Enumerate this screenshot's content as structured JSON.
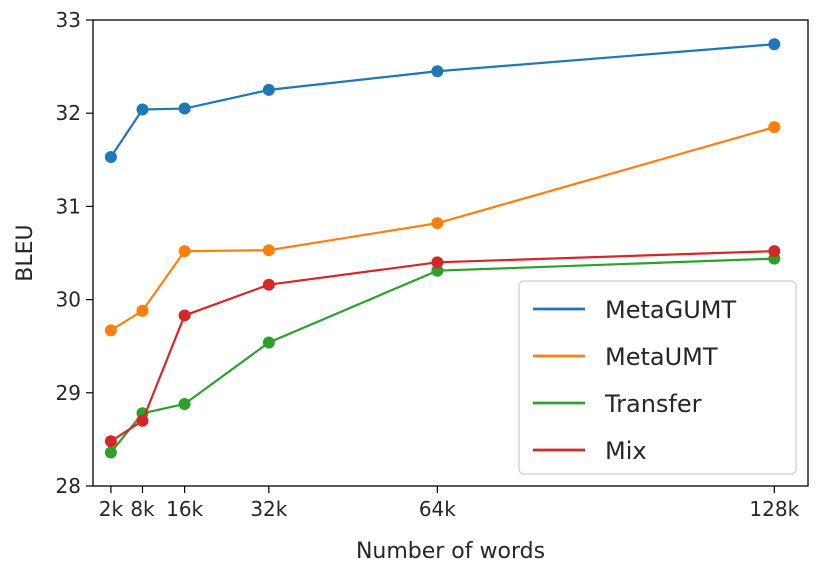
{
  "chart_data": {
    "type": "line",
    "title": "",
    "xlabel": "Number of words",
    "ylabel": "BLEU",
    "x": [
      2,
      8,
      16,
      32,
      64,
      128
    ],
    "x_tick_values": [
      2,
      8,
      16,
      32,
      64,
      128
    ],
    "x_tick_labels": [
      "2k",
      "8k",
      "16k",
      "32k",
      "64k",
      "128k"
    ],
    "y_ticks": [
      28,
      29,
      30,
      31,
      32,
      33
    ],
    "xlim": [
      -1.4,
      134.4
    ],
    "ylim": [
      28,
      33
    ],
    "grid": false,
    "legend_position": "lower-right",
    "series": [
      {
        "name": "MetaGUMT",
        "color": "#1f77b4",
        "values": [
          31.53,
          32.04,
          32.05,
          32.25,
          32.45,
          32.74
        ]
      },
      {
        "name": "MetaUMT",
        "color": "#ff7f0e",
        "values": [
          29.67,
          29.88,
          30.52,
          30.53,
          30.82,
          31.85
        ]
      },
      {
        "name": "Transfer",
        "color": "#2ca02c",
        "values": [
          28.36,
          28.78,
          28.88,
          29.54,
          30.31,
          30.44
        ]
      },
      {
        "name": "Mix",
        "color": "#d62728",
        "values": [
          28.48,
          28.7,
          29.83,
          30.16,
          30.4,
          30.52
        ]
      }
    ]
  }
}
